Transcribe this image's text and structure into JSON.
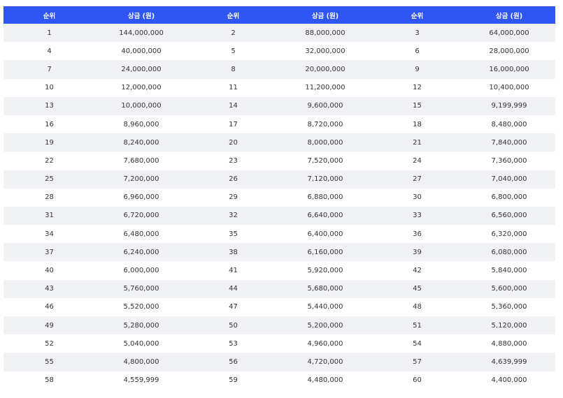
{
  "table": {
    "headers": [
      "순위",
      "상금 (원)",
      "순위",
      "상금 (원)",
      "순위",
      "상금 (원)"
    ],
    "rows": [
      [
        "1",
        "144,000,000",
        "2",
        "88,000,000",
        "3",
        "64,000,000"
      ],
      [
        "4",
        "40,000,000",
        "5",
        "32,000,000",
        "6",
        "28,000,000"
      ],
      [
        "7",
        "24,000,000",
        "8",
        "20,000,000",
        "9",
        "16,000,000"
      ],
      [
        "10",
        "12,000,000",
        "11",
        "11,200,000",
        "12",
        "10,400,000"
      ],
      [
        "13",
        "10,000,000",
        "14",
        "9,600,000",
        "15",
        "9,199,999"
      ],
      [
        "16",
        "8,960,000",
        "17",
        "8,720,000",
        "18",
        "8,480,000"
      ],
      [
        "19",
        "8,240,000",
        "20",
        "8,000,000",
        "21",
        "7,840,000"
      ],
      [
        "22",
        "7,680,000",
        "23",
        "7,520,000",
        "24",
        "7,360,000"
      ],
      [
        "25",
        "7,200,000",
        "26",
        "7,120,000",
        "27",
        "7,040,000"
      ],
      [
        "28",
        "6,960,000",
        "29",
        "6,880,000",
        "30",
        "6,800,000"
      ],
      [
        "31",
        "6,720,000",
        "32",
        "6,640,000",
        "33",
        "6,560,000"
      ],
      [
        "34",
        "6,480,000",
        "35",
        "6,400,000",
        "36",
        "6,320,000"
      ],
      [
        "37",
        "6,240,000",
        "38",
        "6,160,000",
        "39",
        "6,080,000"
      ],
      [
        "40",
        "6,000,000",
        "41",
        "5,920,000",
        "42",
        "5,840,000"
      ],
      [
        "43",
        "5,760,000",
        "44",
        "5,680,000",
        "45",
        "5,600,000"
      ],
      [
        "46",
        "5,520,000",
        "47",
        "5,440,000",
        "48",
        "5,360,000"
      ],
      [
        "49",
        "5,280,000",
        "50",
        "5,200,000",
        "51",
        "5,120,000"
      ],
      [
        "52",
        "5,040,000",
        "53",
        "4,960,000",
        "54",
        "4,880,000"
      ],
      [
        "55",
        "4,800,000",
        "56",
        "4,720,000",
        "57",
        "4,639,999"
      ],
      [
        "58",
        "4,559,999",
        "59",
        "4,480,000",
        "60",
        "4,400,000"
      ]
    ]
  },
  "colors": {
    "header_bg": "#2f55f2",
    "header_text": "#ffffff",
    "stripe_bg": "#f1f2f5",
    "row_bg": "#ffffff",
    "cell_text": "#333333"
  }
}
